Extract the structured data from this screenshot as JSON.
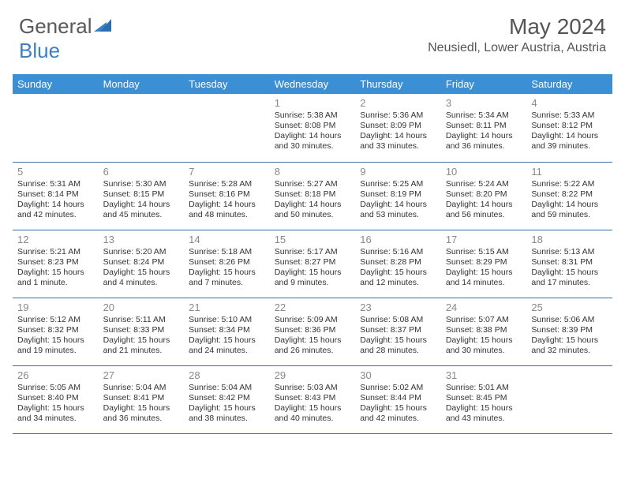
{
  "brand": {
    "part1": "General",
    "part2": "Blue"
  },
  "title": "May 2024",
  "location": "Neusiedl, Lower Austria, Austria",
  "colors": {
    "header_bg": "#3b8fd4",
    "header_text": "#ffffff",
    "row_border": "#3b6fa8",
    "daynum": "#888888",
    "body_text": "#333333",
    "brand_gray": "#5a5a5a",
    "brand_blue": "#3b7fc4",
    "background": "#ffffff"
  },
  "day_headers": [
    "Sunday",
    "Monday",
    "Tuesday",
    "Wednesday",
    "Thursday",
    "Friday",
    "Saturday"
  ],
  "weeks": [
    [
      null,
      null,
      null,
      {
        "n": "1",
        "sr": "5:38 AM",
        "ss": "8:08 PM",
        "dl": "14 hours and 30 minutes."
      },
      {
        "n": "2",
        "sr": "5:36 AM",
        "ss": "8:09 PM",
        "dl": "14 hours and 33 minutes."
      },
      {
        "n": "3",
        "sr": "5:34 AM",
        "ss": "8:11 PM",
        "dl": "14 hours and 36 minutes."
      },
      {
        "n": "4",
        "sr": "5:33 AM",
        "ss": "8:12 PM",
        "dl": "14 hours and 39 minutes."
      }
    ],
    [
      {
        "n": "5",
        "sr": "5:31 AM",
        "ss": "8:14 PM",
        "dl": "14 hours and 42 minutes."
      },
      {
        "n": "6",
        "sr": "5:30 AM",
        "ss": "8:15 PM",
        "dl": "14 hours and 45 minutes."
      },
      {
        "n": "7",
        "sr": "5:28 AM",
        "ss": "8:16 PM",
        "dl": "14 hours and 48 minutes."
      },
      {
        "n": "8",
        "sr": "5:27 AM",
        "ss": "8:18 PM",
        "dl": "14 hours and 50 minutes."
      },
      {
        "n": "9",
        "sr": "5:25 AM",
        "ss": "8:19 PM",
        "dl": "14 hours and 53 minutes."
      },
      {
        "n": "10",
        "sr": "5:24 AM",
        "ss": "8:20 PM",
        "dl": "14 hours and 56 minutes."
      },
      {
        "n": "11",
        "sr": "5:22 AM",
        "ss": "8:22 PM",
        "dl": "14 hours and 59 minutes."
      }
    ],
    [
      {
        "n": "12",
        "sr": "5:21 AM",
        "ss": "8:23 PM",
        "dl": "15 hours and 1 minute."
      },
      {
        "n": "13",
        "sr": "5:20 AM",
        "ss": "8:24 PM",
        "dl": "15 hours and 4 minutes."
      },
      {
        "n": "14",
        "sr": "5:18 AM",
        "ss": "8:26 PM",
        "dl": "15 hours and 7 minutes."
      },
      {
        "n": "15",
        "sr": "5:17 AM",
        "ss": "8:27 PM",
        "dl": "15 hours and 9 minutes."
      },
      {
        "n": "16",
        "sr": "5:16 AM",
        "ss": "8:28 PM",
        "dl": "15 hours and 12 minutes."
      },
      {
        "n": "17",
        "sr": "5:15 AM",
        "ss": "8:29 PM",
        "dl": "15 hours and 14 minutes."
      },
      {
        "n": "18",
        "sr": "5:13 AM",
        "ss": "8:31 PM",
        "dl": "15 hours and 17 minutes."
      }
    ],
    [
      {
        "n": "19",
        "sr": "5:12 AM",
        "ss": "8:32 PM",
        "dl": "15 hours and 19 minutes."
      },
      {
        "n": "20",
        "sr": "5:11 AM",
        "ss": "8:33 PM",
        "dl": "15 hours and 21 minutes."
      },
      {
        "n": "21",
        "sr": "5:10 AM",
        "ss": "8:34 PM",
        "dl": "15 hours and 24 minutes."
      },
      {
        "n": "22",
        "sr": "5:09 AM",
        "ss": "8:36 PM",
        "dl": "15 hours and 26 minutes."
      },
      {
        "n": "23",
        "sr": "5:08 AM",
        "ss": "8:37 PM",
        "dl": "15 hours and 28 minutes."
      },
      {
        "n": "24",
        "sr": "5:07 AM",
        "ss": "8:38 PM",
        "dl": "15 hours and 30 minutes."
      },
      {
        "n": "25",
        "sr": "5:06 AM",
        "ss": "8:39 PM",
        "dl": "15 hours and 32 minutes."
      }
    ],
    [
      {
        "n": "26",
        "sr": "5:05 AM",
        "ss": "8:40 PM",
        "dl": "15 hours and 34 minutes."
      },
      {
        "n": "27",
        "sr": "5:04 AM",
        "ss": "8:41 PM",
        "dl": "15 hours and 36 minutes."
      },
      {
        "n": "28",
        "sr": "5:04 AM",
        "ss": "8:42 PM",
        "dl": "15 hours and 38 minutes."
      },
      {
        "n": "29",
        "sr": "5:03 AM",
        "ss": "8:43 PM",
        "dl": "15 hours and 40 minutes."
      },
      {
        "n": "30",
        "sr": "5:02 AM",
        "ss": "8:44 PM",
        "dl": "15 hours and 42 minutes."
      },
      {
        "n": "31",
        "sr": "5:01 AM",
        "ss": "8:45 PM",
        "dl": "15 hours and 43 minutes."
      },
      null
    ]
  ],
  "labels": {
    "sunrise": "Sunrise:",
    "sunset": "Sunset:",
    "daylight": "Daylight:"
  }
}
